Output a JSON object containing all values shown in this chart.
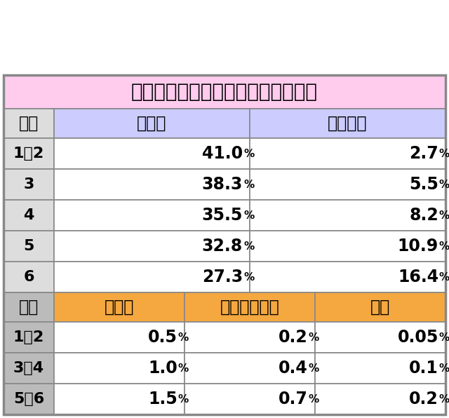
{
  "title": "弱チャンス目（リールロックなし）",
  "title_bg": "#ffccee",
  "title_color": "#000000",
  "title_fontsize": 20,
  "section1_header_bg": "#ccccff",
  "section1_header_labels": [
    "設定",
    "高確へ",
    "超高確へ"
  ],
  "section1_rows": [
    [
      "1・2",
      "41.0",
      "2.7"
    ],
    [
      "3",
      "38.3",
      "5.5"
    ],
    [
      "4",
      "35.5",
      "8.2"
    ],
    [
      "5",
      "32.8",
      "10.9"
    ],
    [
      "6",
      "27.3",
      "16.4"
    ]
  ],
  "section1_row_bg": "#ffffff",
  "section1_label_bg": "#dddddd",
  "section2_header_bg_label": "#bbbbbb",
  "section2_header_bg": "#f5a840",
  "section2_header_labels": [
    "設定",
    "バトル",
    "ノックアウト",
    "帝王"
  ],
  "section2_rows": [
    [
      "1・2",
      "0.5",
      "0.2",
      "0.05"
    ],
    [
      "3・4",
      "1.0",
      "0.4",
      "0.1"
    ],
    [
      "5・6",
      "1.5",
      "0.7",
      "0.2"
    ]
  ],
  "section2_row_bg": "#ffffff",
  "section2_label_bg": "#bbbbbb",
  "border_color": "#888888",
  "text_color": "#000000",
  "percent_fontsize": 17,
  "percent_small_fontsize": 11,
  "label_fontsize": 16,
  "header_fontsize": 17
}
